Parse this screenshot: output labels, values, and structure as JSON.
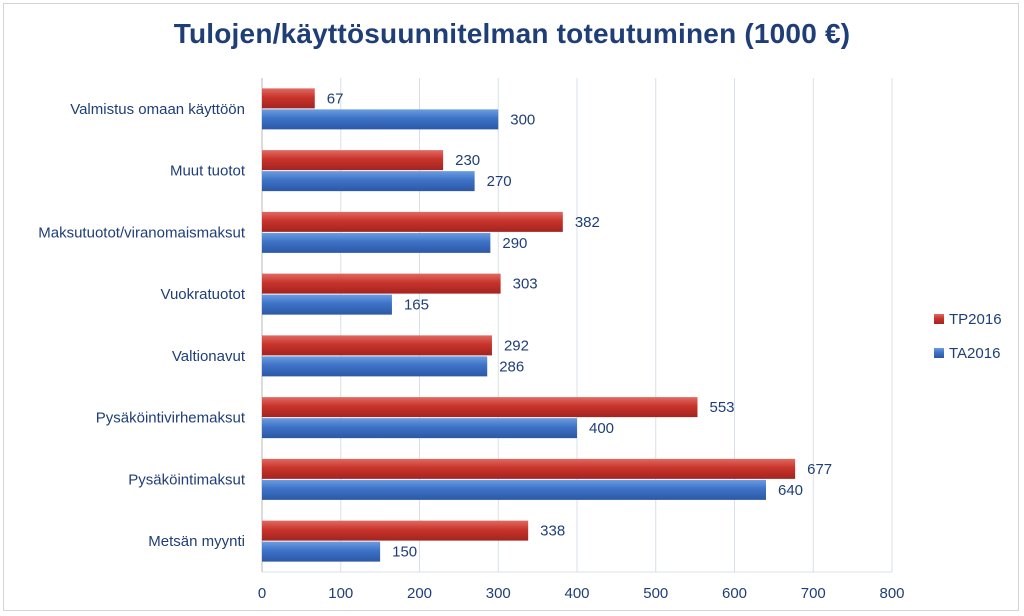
{
  "chart_data": {
    "type": "bar",
    "orientation": "horizontal",
    "title": "Tulojen/käyttösuunnitelman toteutuminen (1000 €)",
    "categories": [
      "Valmistus omaan käyttöön",
      "Muut tuotot",
      "Maksutuotot/viranomaismaksut",
      "Vuokratuotot",
      "Valtionavut",
      "Pysäköintivirhemaksut",
      "Pysäköintimaksut",
      "Metsän myynti"
    ],
    "series": [
      {
        "name": "TP2016",
        "color": "#c0392b",
        "values": [
          67,
          230,
          382,
          303,
          292,
          553,
          677,
          338
        ]
      },
      {
        "name": "TA2016",
        "color": "#3a6fc4",
        "values": [
          300,
          270,
          290,
          165,
          286,
          400,
          640,
          150
        ]
      }
    ],
    "xlim": [
      0,
      800
    ],
    "xticks": [
      0,
      100,
      200,
      300,
      400,
      500,
      600,
      700,
      800
    ],
    "grid": true,
    "legend_position": "right"
  }
}
